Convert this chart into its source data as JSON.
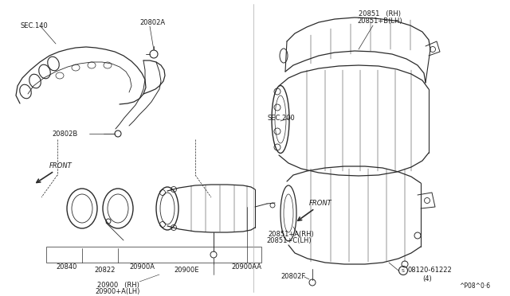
{
  "bg_color": "#f5f5f0",
  "line_color": "#2a2a2a",
  "text_color": "#1a1a1a",
  "fig_width": 6.4,
  "fig_height": 3.72,
  "dpi": 100,
  "border_color": "#888888",
  "labels": {
    "sec140": "SEC.140",
    "20802A": "20802A",
    "20802B": "20802B",
    "20840": "20840",
    "20822": "20822",
    "20900A": "20900A",
    "20900E": "20900E",
    "20900AA": "20900AA",
    "20900_RH": "20900   (RH)",
    "20900_LH": "20900+A(LH)",
    "20851_RH": "20851   (RH)",
    "20851B_LH": "20851+B(LH)",
    "sec200": "SEC.200",
    "20851A_RH": "20851+A(RH)",
    "20851C_LH": "20851+C(LH)",
    "20802F": "20802F",
    "08120": "08120-61222",
    "qty": "(4)",
    "pagecode": "^P08^0·6"
  }
}
